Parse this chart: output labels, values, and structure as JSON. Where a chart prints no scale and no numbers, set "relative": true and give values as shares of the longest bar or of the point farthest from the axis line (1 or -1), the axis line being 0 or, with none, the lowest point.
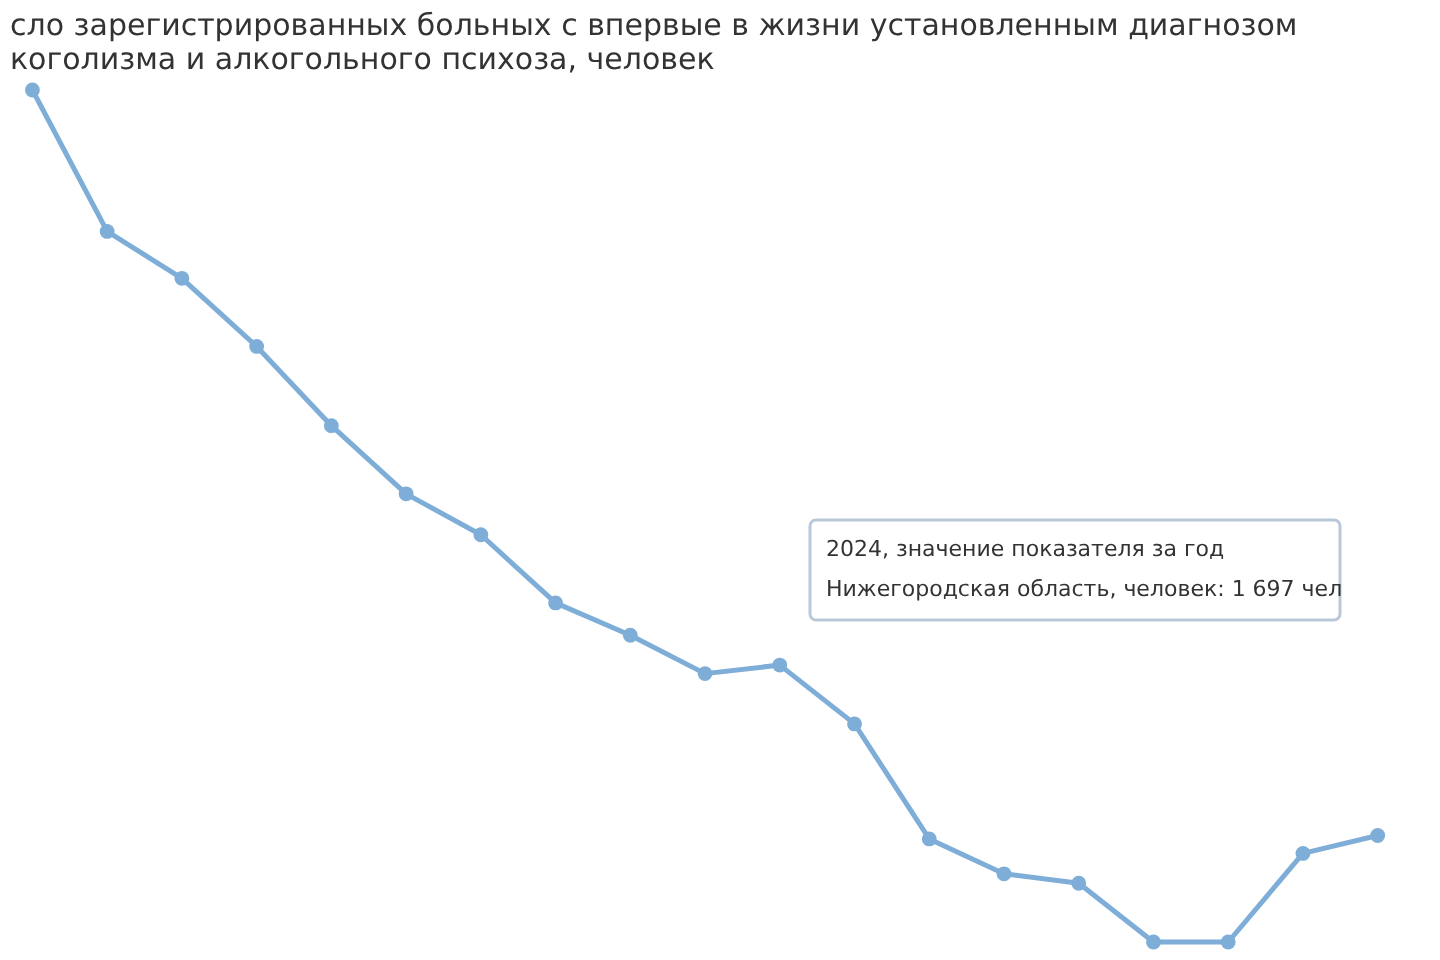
{
  "chart_data": {
    "type": "line",
    "relative": true,
    "title": [
      "сло зарегистрированных больных с впервые в жизни установленным диагнозом",
      "коголизма и алкогольного психоза, человек"
    ],
    "categories": [
      null,
      null,
      null,
      null,
      null,
      null,
      null,
      null,
      null,
      null,
      null,
      null,
      null,
      null,
      null,
      null,
      null,
      null,
      null
    ],
    "series": [
      {
        "color": "#7eaed8",
        "values": [
          1.0,
          0.834,
          0.779,
          0.699,
          0.606,
          0.526,
          0.478,
          0.398,
          0.36,
          0.315,
          0.325,
          0.256,
          0.121,
          0.08,
          0.069,
          0,
          0,
          0.104,
          0.125
        ]
      }
    ],
    "annotations": [
      "2024, значение показателя за год",
      "Нижегородская область, человек: 1 697 чел"
    ],
    "marker": "circle",
    "line_style": "solid",
    "legend": false,
    "tick_labels": false
  }
}
